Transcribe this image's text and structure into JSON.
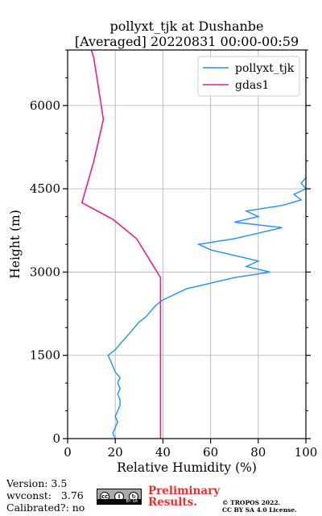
{
  "chart_data": {
    "type": "line",
    "title": "pollyxt_tjk at Dushanbe",
    "subtitle": "[Averaged] 20220831 00:00-00:59",
    "xlabel": "Relative Humidity (%)",
    "ylabel": "Height (m)",
    "xlim": [
      0,
      100
    ],
    "ylim": [
      0,
      7000
    ],
    "xticks": [
      0,
      20,
      40,
      60,
      80,
      100
    ],
    "yticks": [
      0,
      1500,
      3000,
      4500,
      6000
    ],
    "grid": true,
    "legend_position": "top-right",
    "series": [
      {
        "name": "pollyxt_tjk",
        "color": "#1e90ff",
        "points": [
          [
            20,
            0
          ],
          [
            19,
            100
          ],
          [
            20,
            200
          ],
          [
            21,
            300
          ],
          [
            20,
            400
          ],
          [
            21,
            500
          ],
          [
            22,
            600
          ],
          [
            22,
            700
          ],
          [
            21,
            800
          ],
          [
            22,
            900
          ],
          [
            21,
            1000
          ],
          [
            22,
            1100
          ],
          [
            20,
            1200
          ],
          [
            19,
            1300
          ],
          [
            18,
            1400
          ],
          [
            17,
            1500
          ],
          [
            20,
            1600
          ],
          [
            22,
            1700
          ],
          [
            24,
            1800
          ],
          [
            26,
            1900
          ],
          [
            28,
            2000
          ],
          [
            30,
            2100
          ],
          [
            33,
            2200
          ],
          [
            35,
            2300
          ],
          [
            37,
            2400
          ],
          [
            40,
            2500
          ],
          [
            45,
            2600
          ],
          [
            50,
            2700
          ],
          [
            60,
            2800
          ],
          [
            70,
            2900
          ],
          [
            85,
            3000
          ],
          [
            75,
            3100
          ],
          [
            80,
            3200
          ],
          [
            70,
            3300
          ],
          [
            60,
            3400
          ],
          [
            55,
            3500
          ],
          [
            70,
            3600
          ],
          [
            80,
            3700
          ],
          [
            90,
            3800
          ],
          [
            70,
            3900
          ],
          [
            80,
            4000
          ],
          [
            75,
            4100
          ],
          [
            90,
            4200
          ],
          [
            98,
            4300
          ],
          [
            95,
            4400
          ],
          [
            100,
            4500
          ],
          [
            98,
            4600
          ],
          [
            100,
            4700
          ],
          [
            100,
            4800
          ],
          [
            100,
            4900
          ],
          [
            100,
            5000
          ],
          [
            100,
            5200
          ],
          [
            100,
            5400
          ],
          [
            100,
            5600
          ],
          [
            100,
            5800
          ],
          [
            100,
            6000
          ],
          [
            100,
            6200
          ],
          [
            100,
            6400
          ],
          [
            100,
            6600
          ],
          [
            100,
            6800
          ],
          [
            100,
            7000
          ]
        ]
      },
      {
        "name": "gdas1",
        "color": "#e81e8c",
        "points": [
          [
            39,
            0
          ],
          [
            39,
            500
          ],
          [
            39,
            1000
          ],
          [
            39,
            1500
          ],
          [
            39,
            2000
          ],
          [
            39,
            2500
          ],
          [
            39,
            2900
          ],
          [
            29,
            3600
          ],
          [
            19,
            3950
          ],
          [
            6,
            4250
          ],
          [
            11,
            5000
          ],
          [
            15,
            5750
          ],
          [
            13,
            6300
          ],
          [
            11,
            6850
          ],
          [
            10,
            7000
          ]
        ]
      }
    ]
  },
  "footer": {
    "version": "Version: 3.5",
    "wvconst": "wvconst:   3.76",
    "calibrated": "Calibrated?: no",
    "preliminary_line1": "Preliminary",
    "preliminary_line2": "Results.",
    "copyright_line1": "© TROPOS 2022.",
    "copyright_line2": "CC BY SA 4.0 License.",
    "license_badge": {
      "cc": "cc",
      "by": "BY",
      "sa": "SA"
    }
  }
}
